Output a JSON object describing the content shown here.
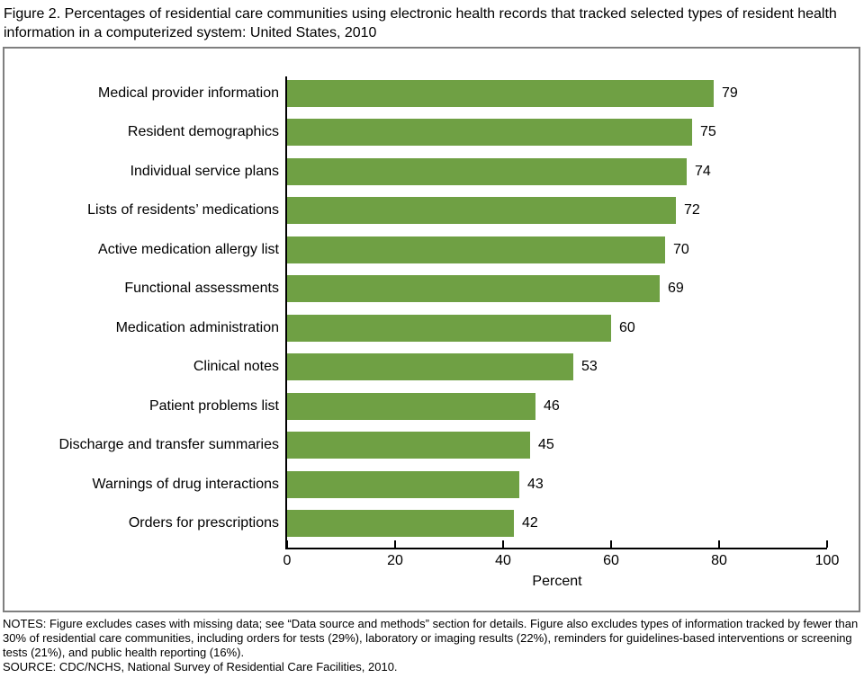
{
  "title": "Figure 2. Percentages of residential care communities using electronic health records that tracked selected types of resident health information in a computerized system: United States, 2010",
  "chart_data": {
    "type": "bar",
    "orientation": "horizontal",
    "title": "",
    "xlabel": "Percent",
    "ylabel": "",
    "xlim": [
      0,
      100
    ],
    "xticks": [
      0,
      20,
      40,
      60,
      80,
      100
    ],
    "grid": false,
    "legend": false,
    "bar_color": "#6FA044",
    "categories": [
      "Medical provider information",
      "Resident demographics",
      "Individual service plans",
      "Lists of residents’ medications",
      "Active medication allergy list",
      "Functional assessments",
      "Medication administration",
      "Clinical notes",
      "Patient problems list",
      "Discharge and transfer summaries",
      "Warnings of drug interactions",
      "Orders for prescriptions"
    ],
    "values": [
      79,
      75,
      74,
      72,
      70,
      69,
      60,
      53,
      46,
      45,
      43,
      42
    ]
  },
  "notes": "NOTES: Figure excludes cases with missing data; see “Data source and methods” section for details. Figure also excludes types of information tracked by fewer than 30% of residential care communities, including orders for tests (29%), laboratory or imaging results (22%), reminders for guidelines-based interventions or screening tests (21%), and public health reporting (16%).",
  "source": "SOURCE: CDC/NCHS, National Survey of Residential Care Facilities, 2010."
}
